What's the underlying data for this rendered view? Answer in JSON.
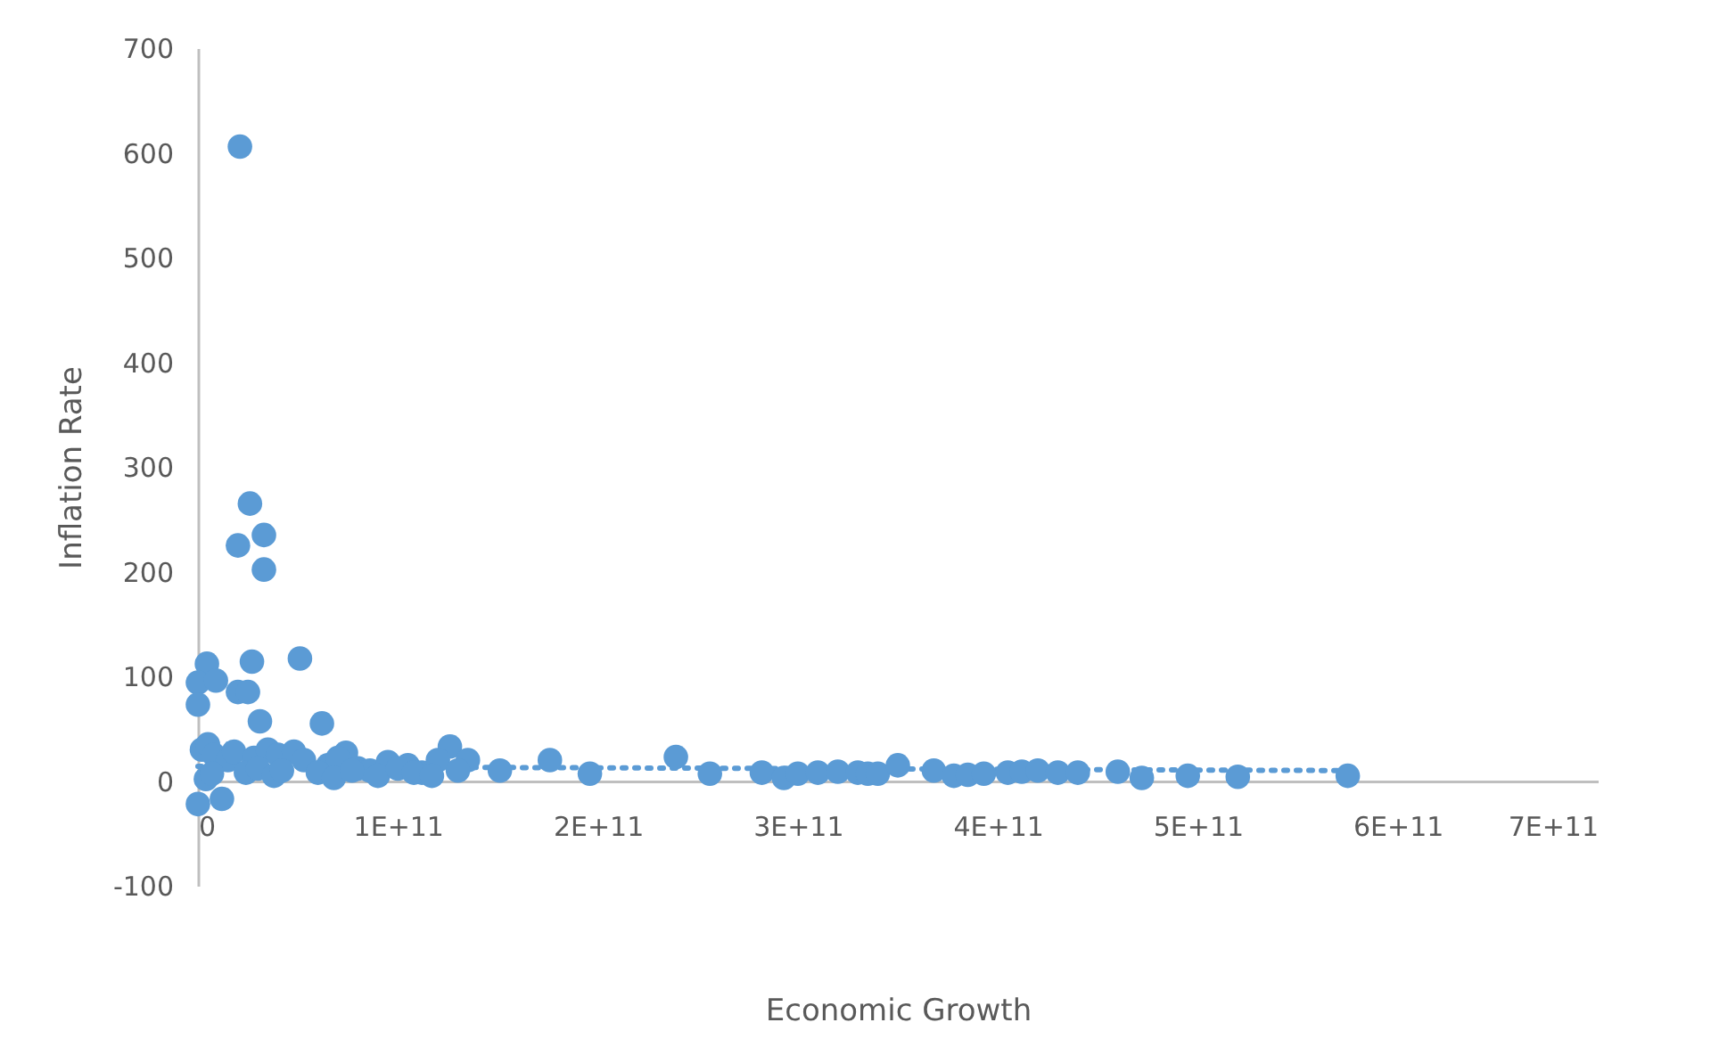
{
  "chart_data": {
    "type": "scatter",
    "xlabel": "Economic Growth",
    "ylabel": "Inflation Rate",
    "xlim": [
      0,
      700000000000
    ],
    "xticks": [
      {
        "value": 0,
        "label": "0"
      },
      {
        "value": 100000000000,
        "label": "1E+11"
      },
      {
        "value": 200000000000,
        "label": "2E+11"
      },
      {
        "value": 300000000000,
        "label": "3E+11"
      },
      {
        "value": 400000000000,
        "label": "4E+11"
      },
      {
        "value": 500000000000,
        "label": "5E+11"
      },
      {
        "value": 600000000000,
        "label": "6E+11"
      },
      {
        "value": 700000000000,
        "label": "7E+11"
      }
    ],
    "ylim": [
      -100,
      700
    ],
    "yticks": [
      -100,
      0,
      100,
      200,
      300,
      400,
      500,
      600,
      700
    ],
    "grid": false,
    "series": [
      {
        "color": "#5b9bd5",
        "marker": "circle",
        "x": [
          21000000000.0,
          26000000000.0,
          20000000000.0,
          33000000000.0,
          33000000000.0,
          27000000000.0,
          51000000000.0,
          4500000000.0,
          0,
          9000000000.0,
          0,
          20000000000.0,
          25000000000.0,
          31000000000.0,
          62000000000.0,
          74000000000.0,
          126000000000.0,
          135000000000.0,
          176000000000.0,
          239000000000.0,
          151000000000.0,
          196000000000.0,
          256000000000.0,
          0,
          12000000000.0,
          2000000000.0,
          5000000000.0,
          8000000000.0,
          15000000000.0,
          18000000000.0,
          28000000000.0,
          35000000000.0,
          40000000000.0,
          48000000000.0,
          53000000000.0,
          65000000000.0,
          70000000000.0,
          80000000000.0,
          86000000000.0,
          95000000000.0,
          105000000000.0,
          112000000000.0,
          120000000000.0,
          130000000000.0,
          24000000000.0,
          30000000000.0,
          38000000000.0,
          42000000000.0,
          60000000000.0,
          68000000000.0,
          77000000000.0,
          90000000000.0,
          100000000000.0,
          108000000000.0,
          117000000000.0,
          4000000000.0,
          7000000000.0,
          282000000000.0,
          293000000000.0,
          300000000000.0,
          310000000000.0,
          320000000000.0,
          330000000000.0,
          335000000000.0,
          340000000000.0,
          350000000000.0,
          368000000000.0,
          378000000000.0,
          385000000000.0,
          393000000000.0,
          405000000000.0,
          412000000000.0,
          420000000000.0,
          430000000000.0,
          440000000000.0,
          460000000000.0,
          472000000000.0,
          495000000000.0,
          520000000000.0,
          575000000000.0
        ],
        "values": [
          606,
          265,
          225,
          235,
          202,
          114,
          117,
          112,
          94,
          96,
          73,
          85,
          85,
          57,
          55,
          27,
          33,
          20,
          20,
          23,
          10,
          7,
          7,
          -22,
          -17,
          30,
          35,
          25,
          20,
          28,
          22,
          30,
          25,
          28,
          20,
          15,
          22,
          12,
          10,
          18,
          15,
          8,
          20,
          10,
          8,
          12,
          5,
          10,
          8,
          3,
          10,
          5,
          12,
          8,
          5,
          2,
          7,
          8,
          3,
          7,
          8,
          9,
          8,
          7,
          7,
          15,
          10,
          5,
          6,
          7,
          8,
          9,
          10,
          8,
          8,
          9,
          3,
          5,
          4,
          5
        ]
      },
      {
        "type": "line",
        "line_style": "dotted",
        "marker": "none",
        "color": "#5b9bd5",
        "x": [
          0,
          575000000000.0
        ],
        "values": [
          14,
          10
        ]
      }
    ]
  }
}
